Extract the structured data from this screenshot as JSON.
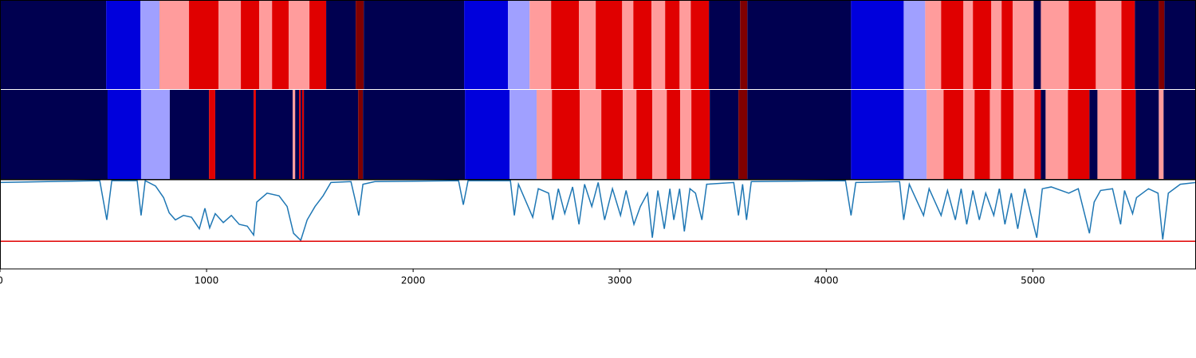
{
  "chart_data": [
    {
      "type": "segments",
      "xlim": [
        0,
        5790
      ],
      "bins": [
        0,
        514,
        680,
        772,
        915,
        1058,
        1166,
        1255,
        1317,
        1398,
        1498,
        1579,
        1722,
        1761,
        2247,
        2459,
        2564,
        2668,
        2803,
        2884,
        3012,
        3066,
        3154,
        3220,
        3290,
        3344,
        3432,
        3583,
        3618,
        4120,
        4375,
        4479,
        4556,
        4664,
        4710,
        4799,
        4849,
        4903,
        5004,
        5039,
        5174,
        5305,
        5429,
        5494,
        5610,
        5637,
        5790
      ],
      "colors": [
        "#000050",
        "#0000dc",
        "#a0a0ff",
        "#ff9c9c",
        "#e00000",
        "#ff9c9c",
        "#e00000",
        "#ff9c9c",
        "#e00000",
        "#ff9c9c",
        "#e00000",
        "#000050",
        "#800000",
        "#000050",
        "#0000dc",
        "#a0a0ff",
        "#ff9c9c",
        "#e00000",
        "#ff9c9c",
        "#e00000",
        "#ff9c9c",
        "#e00000",
        "#ff9c9c",
        "#e00000",
        "#ff9c9c",
        "#e00000",
        "#000050",
        "#800000",
        "#000050",
        "#0000dc",
        "#a0a0ff",
        "#ff9c9c",
        "#e00000",
        "#ff9c9c",
        "#e00000",
        "#ff9c9c",
        "#e00000",
        "#ff9c9c",
        "#000050",
        "#ff9c9c",
        "#e00000",
        "#ff9c9c",
        "#e00000",
        "#000050",
        "#800000",
        "#000050"
      ]
    },
    {
      "type": "segments",
      "xlim": [
        0,
        5790
      ],
      "bins": [
        0,
        521,
        683,
        822,
        1012,
        1042,
        1228,
        1239,
        1417,
        1429,
        1448,
        1456,
        1463,
        1471,
        1734,
        1757,
        2251,
        2467,
        2598,
        2672,
        2807,
        2911,
        3015,
        3081,
        3158,
        3228,
        3293,
        3347,
        3436,
        3575,
        3618,
        4120,
        4375,
        4486,
        4568,
        4664,
        4718,
        4792,
        4846,
        4907,
        5008,
        5039,
        5062,
        5170,
        5274,
        5313,
        5429,
        5498,
        5610,
        5633,
        5790
      ],
      "colors": [
        "#000050",
        "#0000dc",
        "#a0a0ff",
        "#000050",
        "#e00000",
        "#000050",
        "#e00000",
        "#000050",
        "#ff9c9c",
        "#000050",
        "#e00000",
        "#000050",
        "#e00000",
        "#000050",
        "#800000",
        "#000050",
        "#0000dc",
        "#a0a0ff",
        "#ff9c9c",
        "#e00000",
        "#ff9c9c",
        "#e00000",
        "#ff9c9c",
        "#e00000",
        "#ff9c9c",
        "#e00000",
        "#ff9c9c",
        "#e00000",
        "#000050",
        "#800000",
        "#000050",
        "#0000dc",
        "#a0a0ff",
        "#ff9c9c",
        "#e00000",
        "#ff9c9c",
        "#e00000",
        "#ff9c9c",
        "#e00000",
        "#ff9c9c",
        "#e00000",
        "#000050",
        "#ff9c9c",
        "#e00000",
        "#000050",
        "#ff9c9c",
        "#e00000",
        "#000050",
        "#ff9c9c",
        "#000050"
      ]
    },
    {
      "type": "line",
      "xlim": [
        0,
        5790
      ],
      "ylim": [
        0,
        1
      ],
      "color": "#1f77b4",
      "threshold": 0.31,
      "threshold_color": "#e00000",
      "xticks": [
        0,
        1000,
        2000,
        3000,
        4000,
        5000
      ],
      "x": [
        0,
        232,
        483,
        517,
        541,
        664,
        683,
        703,
        753,
        792,
        819,
        849,
        888,
        927,
        965,
        992,
        1015,
        1042,
        1081,
        1120,
        1158,
        1197,
        1228,
        1243,
        1293,
        1351,
        1390,
        1421,
        1456,
        1487,
        1525,
        1564,
        1602,
        1699,
        1737,
        1757,
        1815,
        2220,
        2243,
        2266,
        2471,
        2490,
        2510,
        2579,
        2606,
        2656,
        2676,
        2703,
        2734,
        2772,
        2803,
        2830,
        2865,
        2896,
        2927,
        2965,
        3004,
        3031,
        3069,
        3100,
        3135,
        3158,
        3185,
        3216,
        3243,
        3262,
        3290,
        3313,
        3340,
        3367,
        3398,
        3421,
        3552,
        3575,
        3595,
        3614,
        3637,
        4093,
        4120,
        4143,
        4355,
        4375,
        4402,
        4471,
        4498,
        4556,
        4587,
        4625,
        4653,
        4680,
        4710,
        4741,
        4772,
        4811,
        4838,
        4865,
        4896,
        4927,
        4961,
        4992,
        5019,
        5046,
        5089,
        5174,
        5220,
        5274,
        5297,
        5328,
        5386,
        5425,
        5444,
        5483,
        5502,
        5560,
        5606,
        5629,
        5656,
        5714,
        5790
      ],
      "values": [
        0.97,
        0.98,
        0.99,
        0.55,
        0.99,
        0.99,
        0.6,
        0.99,
        0.93,
        0.8,
        0.63,
        0.55,
        0.6,
        0.58,
        0.45,
        0.68,
        0.46,
        0.62,
        0.52,
        0.6,
        0.5,
        0.48,
        0.38,
        0.75,
        0.85,
        0.82,
        0.7,
        0.4,
        0.32,
        0.55,
        0.7,
        0.82,
        0.97,
        0.98,
        0.6,
        0.95,
        0.98,
        0.99,
        0.72,
        0.99,
        0.99,
        0.6,
        0.95,
        0.58,
        0.9,
        0.85,
        0.55,
        0.9,
        0.62,
        0.92,
        0.5,
        0.95,
        0.7,
        0.97,
        0.55,
        0.9,
        0.6,
        0.88,
        0.5,
        0.7,
        0.85,
        0.35,
        0.88,
        0.45,
        0.9,
        0.55,
        0.9,
        0.42,
        0.9,
        0.85,
        0.55,
        0.95,
        0.97,
        0.6,
        0.95,
        0.55,
        0.98,
        0.99,
        0.6,
        0.97,
        0.98,
        0.55,
        0.95,
        0.6,
        0.9,
        0.6,
        0.88,
        0.55,
        0.9,
        0.5,
        0.88,
        0.55,
        0.85,
        0.6,
        0.9,
        0.5,
        0.85,
        0.45,
        0.9,
        0.6,
        0.35,
        0.9,
        0.92,
        0.85,
        0.9,
        0.4,
        0.75,
        0.88,
        0.9,
        0.5,
        0.88,
        0.62,
        0.8,
        0.9,
        0.85,
        0.33,
        0.85,
        0.95,
        0.97
      ]
    }
  ]
}
